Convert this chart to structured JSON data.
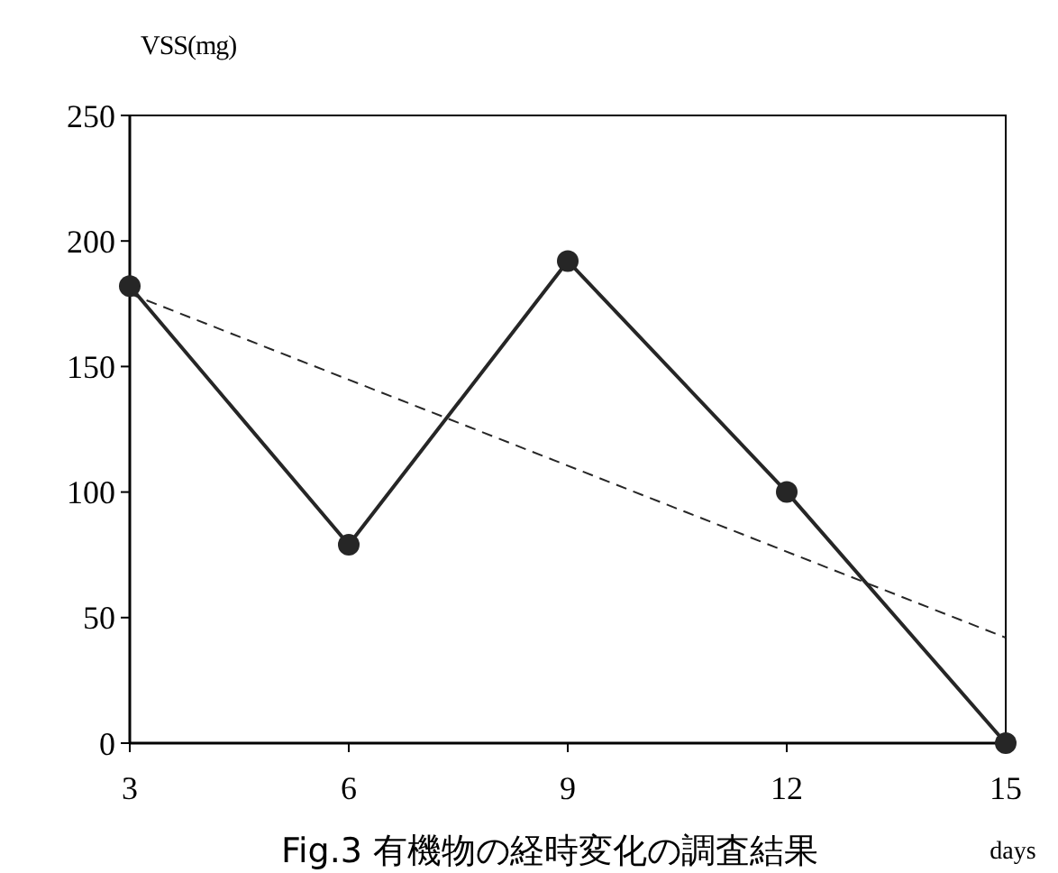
{
  "chart_data": {
    "type": "line",
    "title": "Fig.3 有機物の経時変化の調査結果",
    "xlabel": "days",
    "ylabel": "VSS(mg)",
    "x": [
      3,
      6,
      9,
      12,
      15
    ],
    "xlim": [
      3,
      15
    ],
    "xticks": [
      3,
      6,
      9,
      12,
      15
    ],
    "ylim": [
      0,
      250
    ],
    "yticks": [
      0,
      50,
      100,
      150,
      200,
      250
    ],
    "grid": false,
    "series": [
      {
        "color": "#262626",
        "values": [
          182,
          79,
          192,
          100,
          0
        ],
        "marker": "circle",
        "line_style": "solid"
      },
      {
        "type": "line",
        "color": "#262626",
        "x": [
          3,
          15
        ],
        "values": [
          179,
          42
        ],
        "marker": "none",
        "line_style": "dashed"
      }
    ]
  }
}
